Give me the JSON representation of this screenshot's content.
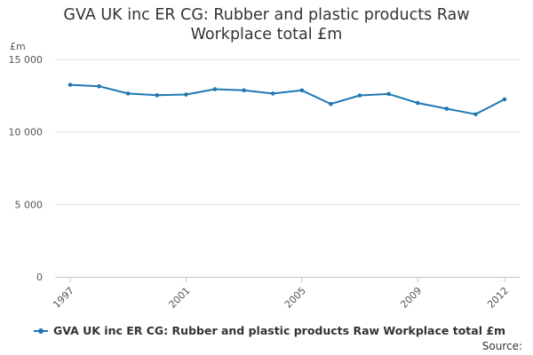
{
  "chart_data": {
    "type": "line",
    "title_lines": [
      "GVA UK inc ER CG: Rubber and plastic products Raw",
      "Workplace total £m"
    ],
    "ylabel": "£m",
    "xlabel": "",
    "ylim": [
      0,
      15000
    ],
    "yticks": [
      {
        "value": 0,
        "label": "0"
      },
      {
        "value": 5000,
        "label": "5 000"
      },
      {
        "value": 10000,
        "label": "10 000"
      },
      {
        "value": 15000,
        "label": "15 000"
      }
    ],
    "xlim": [
      1997,
      2012
    ],
    "xticks": [
      {
        "value": 1997,
        "label": "1997"
      },
      {
        "value": 2001,
        "label": "2001"
      },
      {
        "value": 2005,
        "label": "2005"
      },
      {
        "value": 2009,
        "label": "2009"
      },
      {
        "value": 2012,
        "label": "2012"
      }
    ],
    "grid": "horizontal",
    "legend_position": "bottom",
    "series": [
      {
        "name": "GVA UK inc ER CG: Rubber and plastic products Raw Workplace total £m",
        "color": "#1f78b4",
        "x": [
          1997,
          1998,
          1999,
          2000,
          2001,
          2002,
          2003,
          2004,
          2005,
          2006,
          2007,
          2008,
          2009,
          2010,
          2011,
          2012
        ],
        "values": [
          13250,
          13150,
          12650,
          12530,
          12580,
          12950,
          12870,
          12650,
          12870,
          11930,
          12520,
          12620,
          12000,
          11600,
          11220,
          12250
        ]
      }
    ]
  },
  "source_label": "Source:"
}
